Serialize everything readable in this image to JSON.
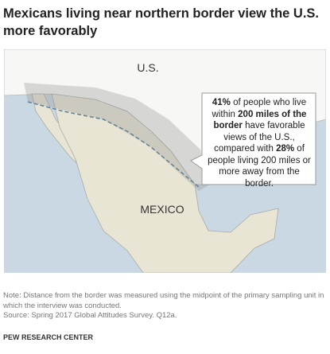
{
  "header": {
    "title": "Mexicans living near northern border view the U.S. more favorably"
  },
  "map": {
    "labels": [
      "U.S.",
      "MEXICO"
    ],
    "callout": [
      "41%",
      " of people who live within ",
      "200 miles of the border",
      " have favorable views of the U.S., compared with ",
      "28%",
      " of people living 200 miles or more away from the border."
    ]
  },
  "footer": {
    "note": "Note: Distance from the border was measured using the midpoint of the primary sampling unit in which the interview was conducted.",
    "source": "Source: Spring 2017 Global Attitudes Survey. Q12a.",
    "credit": "PEW RESEARCH CENTER"
  }
}
